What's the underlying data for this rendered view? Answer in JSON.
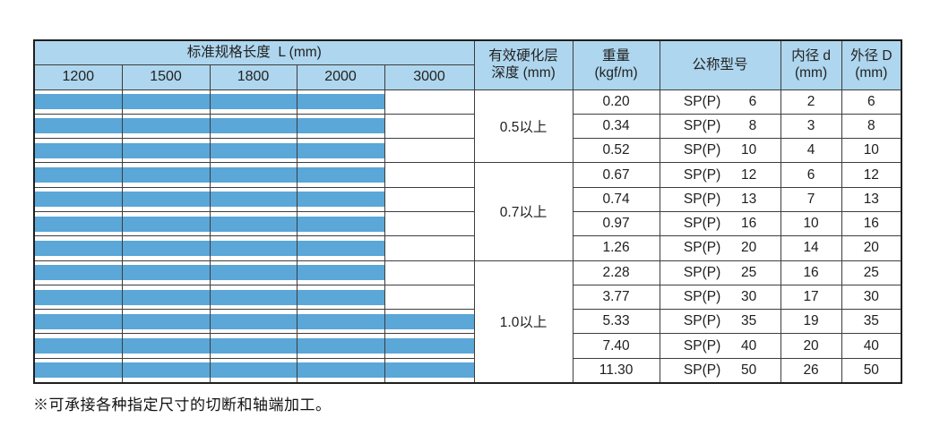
{
  "table": {
    "header": {
      "length_title": "标准规格长度  L (mm)",
      "length_columns": [
        "1200",
        "1500",
        "1800",
        "2000",
        "3000"
      ],
      "hardness": {
        "line1": "有效硬化层",
        "line2": "深度 (mm)"
      },
      "weight": {
        "line1": "重量",
        "line2": "(kgf/m)"
      },
      "model": "公称型号",
      "inner": {
        "line1": "内径 d",
        "line2": "(mm)"
      },
      "outer": {
        "line1": "外径 D",
        "line2": "(mm)"
      }
    },
    "hardness_groups": [
      {
        "label": "0.5以上",
        "row_count": 3
      },
      {
        "label": "0.7以上",
        "row_count": 4
      },
      {
        "label": "1.0以上",
        "row_count": 5
      }
    ],
    "rows": [
      {
        "weight": "0.20",
        "model_prefix": "SP(P)",
        "model_size": "6",
        "inner_d": "2",
        "outer_d": "6",
        "length_span": 4
      },
      {
        "weight": "0.34",
        "model_prefix": "SP(P)",
        "model_size": "8",
        "inner_d": "3",
        "outer_d": "8",
        "length_span": 4
      },
      {
        "weight": "0.52",
        "model_prefix": "SP(P)",
        "model_size": "10",
        "inner_d": "4",
        "outer_d": "10",
        "length_span": 4
      },
      {
        "weight": "0.67",
        "model_prefix": "SP(P)",
        "model_size": "12",
        "inner_d": "6",
        "outer_d": "12",
        "length_span": 4
      },
      {
        "weight": "0.74",
        "model_prefix": "SP(P)",
        "model_size": "13",
        "inner_d": "7",
        "outer_d": "13",
        "length_span": 4
      },
      {
        "weight": "0.97",
        "model_prefix": "SP(P)",
        "model_size": "16",
        "inner_d": "10",
        "outer_d": "16",
        "length_span": 4
      },
      {
        "weight": "1.26",
        "model_prefix": "SP(P)",
        "model_size": "20",
        "inner_d": "14",
        "outer_d": "20",
        "length_span": 4
      },
      {
        "weight": "2.28",
        "model_prefix": "SP(P)",
        "model_size": "25",
        "inner_d": "16",
        "outer_d": "25",
        "length_span": 4
      },
      {
        "weight": "3.77",
        "model_prefix": "SP(P)",
        "model_size": "30",
        "inner_d": "17",
        "outer_d": "30",
        "length_span": 4
      },
      {
        "weight": "5.33",
        "model_prefix": "SP(P)",
        "model_size": "35",
        "inner_d": "19",
        "outer_d": "35",
        "length_span": 5
      },
      {
        "weight": "7.40",
        "model_prefix": "SP(P)",
        "model_size": "40",
        "inner_d": "20",
        "outer_d": "40",
        "length_span": 5
      },
      {
        "weight": "11.30",
        "model_prefix": "SP(P)",
        "model_size": "50",
        "inner_d": "26",
        "outer_d": "50",
        "length_span": 5
      }
    ],
    "colors": {
      "header_bg": "#aed6ee",
      "bar_fill": "#5aa7d8",
      "shaded_row_bg": "#e8e8e8"
    }
  },
  "footnote": "※可承接各种指定尺寸的切断和轴端加工。"
}
